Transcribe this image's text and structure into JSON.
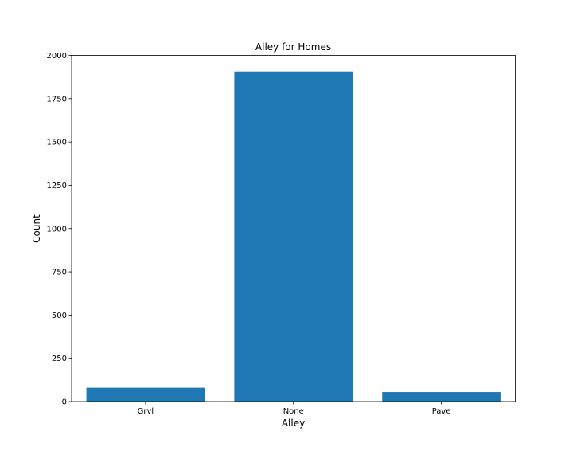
{
  "chart_data": {
    "type": "bar",
    "title": "Alley for Homes",
    "xlabel": "Alley",
    "ylabel": "Count",
    "categories": [
      "Grvl",
      "None",
      "Pave"
    ],
    "values": [
      80,
      1907,
      55
    ],
    "ylim": [
      0,
      2000
    ],
    "yticks": [
      0,
      250,
      500,
      750,
      1000,
      1250,
      1500,
      1750,
      2000
    ],
    "grid": false,
    "bar_color": "#1f77b4"
  }
}
